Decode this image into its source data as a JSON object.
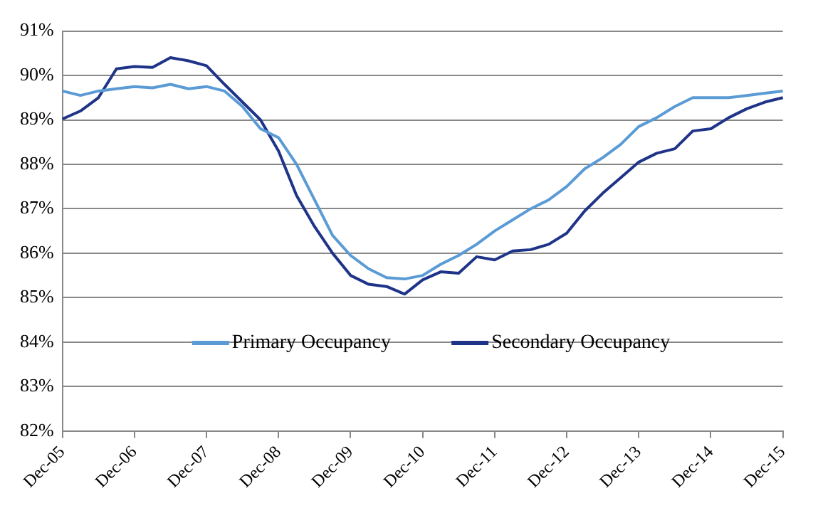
{
  "chart_data": {
    "type": "line",
    "categories": [
      "Dec-05",
      null,
      null,
      null,
      "Dec-06",
      null,
      null,
      null,
      "Dec-07",
      null,
      null,
      null,
      "Dec-08",
      null,
      null,
      null,
      "Dec-09",
      null,
      null,
      null,
      "Dec-10",
      null,
      null,
      null,
      "Dec-11",
      null,
      null,
      null,
      "Dec-12",
      null,
      null,
      null,
      "Dec-13",
      null,
      null,
      null,
      "Dec-14",
      null,
      null,
      null,
      "Dec-15"
    ],
    "series": [
      {
        "name": "Primary Occupancy",
        "color": "#5b9bd5",
        "values": [
          89.65,
          89.55,
          89.65,
          89.7,
          89.75,
          89.72,
          89.8,
          89.7,
          89.75,
          89.65,
          89.3,
          88.8,
          88.6,
          88.0,
          87.2,
          86.4,
          85.95,
          85.65,
          85.45,
          85.42,
          85.5,
          85.75,
          85.95,
          86.2,
          86.5,
          86.75,
          87.0,
          87.2,
          87.5,
          87.9,
          88.15,
          88.45,
          88.85,
          89.05,
          89.3,
          89.5,
          89.5,
          89.5,
          89.55,
          89.6,
          89.65
        ]
      },
      {
        "name": "Secondary Occupancy",
        "color": "#1f3488",
        "values": [
          89.02,
          89.2,
          89.5,
          90.15,
          90.2,
          90.18,
          90.4,
          90.33,
          90.22,
          89.8,
          89.4,
          89.0,
          88.3,
          87.3,
          86.6,
          86.0,
          85.5,
          85.3,
          85.25,
          85.08,
          85.4,
          85.58,
          85.55,
          85.92,
          85.85,
          86.05,
          86.08,
          86.2,
          86.45,
          86.95,
          87.35,
          87.7,
          88.05,
          88.25,
          88.35,
          88.75,
          88.8,
          89.05,
          89.25,
          89.4,
          89.5
        ]
      }
    ],
    "ylim": [
      82,
      91
    ],
    "yticks": [
      {
        "value": 82,
        "label": "82%"
      },
      {
        "value": 83,
        "label": "83%"
      },
      {
        "value": 84,
        "label": "84%"
      },
      {
        "value": 85,
        "label": "85%"
      },
      {
        "value": 86,
        "label": "86%"
      },
      {
        "value": 87,
        "label": "87%"
      },
      {
        "value": 88,
        "label": "88%"
      },
      {
        "value": 89,
        "label": "89%"
      },
      {
        "value": 90,
        "label": "90%"
      },
      {
        "value": 91,
        "label": "91%"
      }
    ],
    "grid": "y",
    "legend": "bottom",
    "marker": "none",
    "line_style": "solid"
  }
}
